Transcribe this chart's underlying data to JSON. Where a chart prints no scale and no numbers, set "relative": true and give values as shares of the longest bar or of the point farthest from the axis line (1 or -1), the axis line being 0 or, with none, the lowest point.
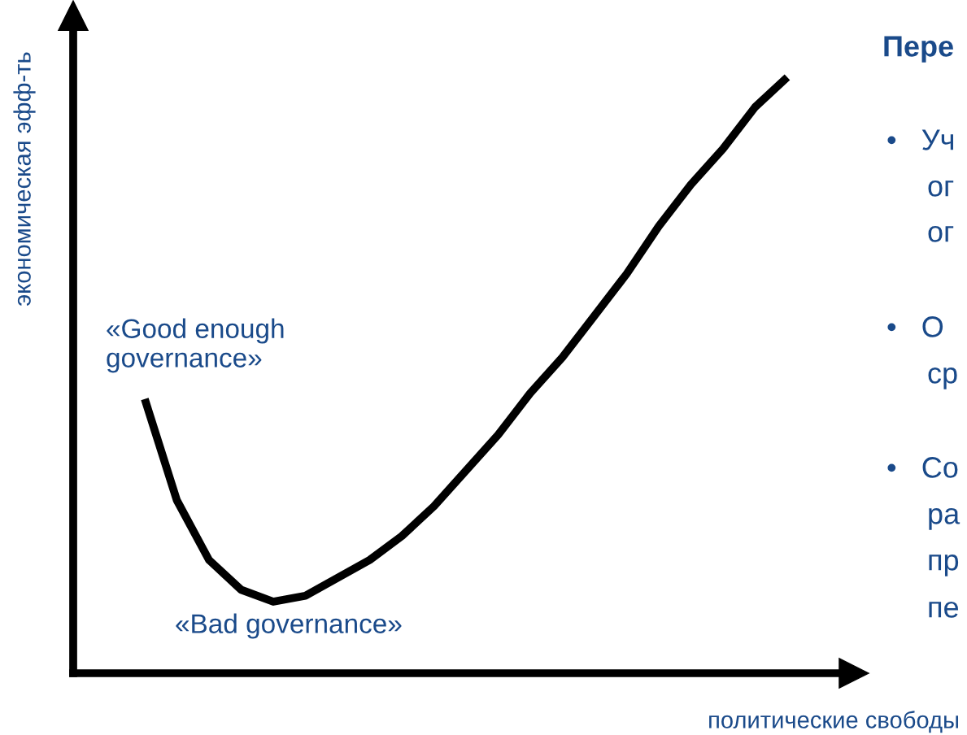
{
  "chart_data": {
    "type": "line",
    "relative": true,
    "xlabel": "политические свободы",
    "ylabel": "экономическая эфф-ть",
    "categories": [
      null,
      null,
      null,
      null,
      null,
      null,
      null,
      null,
      null,
      null,
      null,
      null,
      null,
      null,
      null,
      null,
      null,
      null,
      null,
      null,
      null
    ],
    "series": [
      {
        "color": "#000000",
        "values": [
          0.46,
          0.29,
          0.19,
          0.14,
          0.12,
          0.13,
          0.16,
          0.19,
          0.23,
          0.28,
          0.34,
          0.4,
          0.47,
          0.53,
          0.6,
          0.67,
          0.75,
          0.82,
          0.88,
          0.95,
          1.0
        ]
      }
    ],
    "marker": "none",
    "line_style": "solid",
    "legend": false,
    "annotations": [
      "«Good enough\ngovernance»",
      "«Bad governance»",
      "Пере",
      "•   Уч",
      "ог",
      "ог",
      "•   О",
      "ср",
      "•   Со",
      "ра",
      "пр",
      "пе"
    ]
  }
}
